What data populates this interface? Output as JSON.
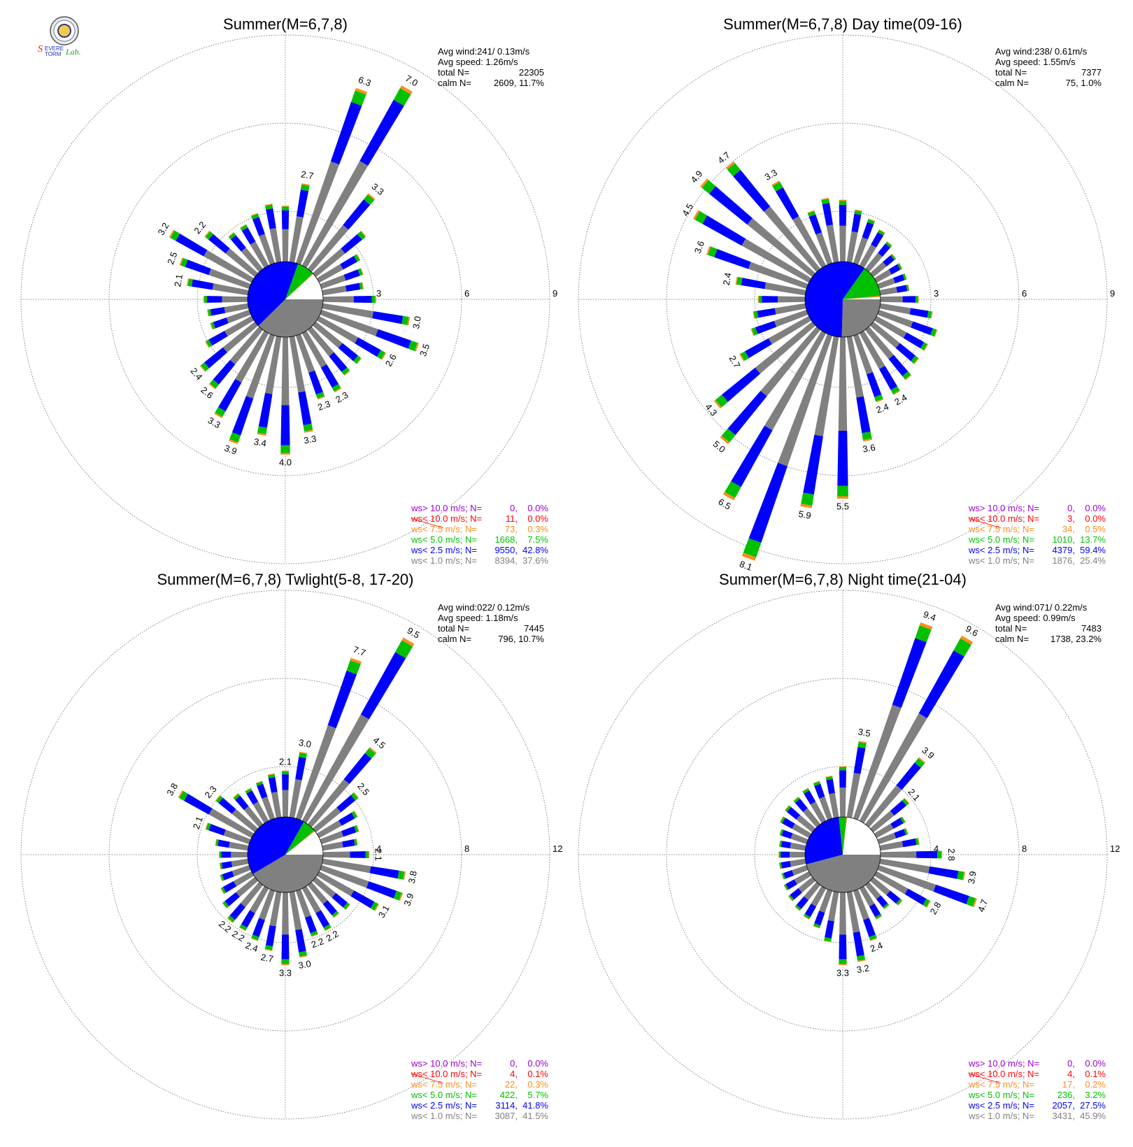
{
  "logo": {
    "text": "Severe Storm Lab."
  },
  "colors": {
    "gray": "#808080",
    "blue": "#0000ff",
    "green": "#00c000",
    "orange": "#ff8c1a",
    "red": "#ff0000",
    "purple": "#9b00d3",
    "grid": "#666666",
    "calm_white": "#ffffff"
  },
  "legend_labels": [
    "ws> 10.0 m/s; N=",
    "ws< 10.0 m/s; N=",
    "ws<  7.5 m/s; N=",
    "ws<  5.0 m/s; N=",
    "ws<  2.5 m/s; N=",
    "ws<  1.0 m/s; N="
  ],
  "stat_labels": {
    "avg_wind": "Avg wind:",
    "avg_speed": "Avg speed:",
    "total": "total N=",
    "calm": "calm N="
  },
  "chart_data": [
    {
      "type": "wind-rose",
      "title": "Summer(M=6,7,8)",
      "ring_labels": [
        "3",
        "6",
        "9"
      ],
      "max_ring": 9,
      "stats": {
        "avg_wind": "241/ 0.13m/s",
        "avg_speed": "1.26m/s",
        "total": "22305",
        "calm": "2609,  11.7%"
      },
      "legend": [
        {
          "n": "0",
          "pct": "0.0%"
        },
        {
          "n": "11",
          "pct": "0.0%"
        },
        {
          "n": "73",
          "pct": "0.3%"
        },
        {
          "n": "1668",
          "pct": "7.5%"
        },
        {
          "n": "9550",
          "pct": "42.8%"
        },
        {
          "n": "8394",
          "pct": "37.6%"
        }
      ],
      "center_pie": [
        37.6,
        42.8,
        7.5,
        0.3,
        0.0,
        0.0,
        11.7
      ],
      "sectors": [
        {
          "dir": 0,
          "total": 1.9
        },
        {
          "dir": 10,
          "total": 2.7,
          "label": "2.7"
        },
        {
          "dir": 20,
          "total": 6.3,
          "label": "6.3"
        },
        {
          "dir": 30,
          "total": 7.0,
          "label": "7.0"
        },
        {
          "dir": 40,
          "total": 3.3,
          "label": "3.3"
        },
        {
          "dir": 50,
          "total": 2.2
        },
        {
          "dir": 60,
          "total": 1.6
        },
        {
          "dir": 70,
          "total": 1.5
        },
        {
          "dir": 80,
          "total": 1.4
        },
        {
          "dir": 90,
          "total": 1.8
        },
        {
          "dir": 100,
          "total": 3.0,
          "label": "3.0"
        },
        {
          "dir": 110,
          "total": 3.5,
          "label": "3.5"
        },
        {
          "dir": 120,
          "total": 2.6,
          "label": "2.6"
        },
        {
          "dir": 130,
          "total": 2.0
        },
        {
          "dir": 140,
          "total": 2.0
        },
        {
          "dir": 150,
          "total": 2.3,
          "label": "2.3"
        },
        {
          "dir": 160,
          "total": 2.3,
          "label": "2.3"
        },
        {
          "dir": 170,
          "total": 3.3,
          "label": "3.3"
        },
        {
          "dir": 180,
          "total": 4.0,
          "label": "4.0"
        },
        {
          "dir": 190,
          "total": 3.4,
          "label": "3.4"
        },
        {
          "dir": 200,
          "total": 3.9,
          "label": "3.9"
        },
        {
          "dir": 210,
          "total": 3.3,
          "label": "3.3"
        },
        {
          "dir": 220,
          "total": 2.6,
          "label": "2.6"
        },
        {
          "dir": 230,
          "total": 2.4,
          "label": "2.4"
        },
        {
          "dir": 240,
          "total": 1.8
        },
        {
          "dir": 250,
          "total": 1.4
        },
        {
          "dir": 260,
          "total": 1.4
        },
        {
          "dir": 270,
          "total": 1.5
        },
        {
          "dir": 280,
          "total": 2.1,
          "label": "2.1"
        },
        {
          "dir": 290,
          "total": 2.5,
          "label": "2.5"
        },
        {
          "dir": 300,
          "total": 3.2,
          "label": "3.2"
        },
        {
          "dir": 310,
          "total": 2.2,
          "label": "2.2"
        },
        {
          "dir": 320,
          "total": 1.6
        },
        {
          "dir": 330,
          "total": 1.6
        },
        {
          "dir": 340,
          "total": 1.8
        },
        {
          "dir": 350,
          "total": 2.0
        }
      ]
    },
    {
      "type": "wind-rose",
      "title": "Summer(M=6,7,8) Day time(09-16)",
      "ring_labels": [
        "3",
        "6",
        "9"
      ],
      "max_ring": 9,
      "stats": {
        "avg_wind": "238/ 0.61m/s",
        "avg_speed": "1.55m/s",
        "total": "7377",
        "calm": "75,   1.0%"
      },
      "legend": [
        {
          "n": "0",
          "pct": "0.0%"
        },
        {
          "n": "3",
          "pct": "0.0%"
        },
        {
          "n": "34",
          "pct": "0.5%"
        },
        {
          "n": "1010",
          "pct": "13.7%"
        },
        {
          "n": "4379",
          "pct": "59.4%"
        },
        {
          "n": "1876",
          "pct": "25.4%"
        }
      ],
      "center_pie": [
        25.4,
        59.4,
        13.7,
        0.5,
        0.0,
        0.0,
        1.0
      ],
      "sectors": [
        {
          "dir": 0,
          "total": 2.1
        },
        {
          "dir": 10,
          "total": 1.8
        },
        {
          "dir": 20,
          "total": 1.6
        },
        {
          "dir": 30,
          "total": 1.4
        },
        {
          "dir": 40,
          "total": 1.2
        },
        {
          "dir": 50,
          "total": 1.0
        },
        {
          "dir": 60,
          "total": 1.0
        },
        {
          "dir": 70,
          "total": 1.0
        },
        {
          "dir": 80,
          "total": 1.0
        },
        {
          "dir": 90,
          "total": 1.3
        },
        {
          "dir": 100,
          "total": 1.8
        },
        {
          "dir": 110,
          "total": 2.1
        },
        {
          "dir": 120,
          "total": 2.0
        },
        {
          "dir": 130,
          "total": 2.0
        },
        {
          "dir": 140,
          "total": 2.2
        },
        {
          "dir": 150,
          "total": 2.4,
          "label": "2.4"
        },
        {
          "dir": 160,
          "total": 2.4,
          "label": "2.4"
        },
        {
          "dir": 170,
          "total": 3.6,
          "label": "3.6"
        },
        {
          "dir": 180,
          "total": 5.5,
          "label": "5.5"
        },
        {
          "dir": 190,
          "total": 5.9,
          "label": "5.9"
        },
        {
          "dir": 200,
          "total": 8.1,
          "label": "8.1"
        },
        {
          "dir": 210,
          "total": 6.5,
          "label": "6.5"
        },
        {
          "dir": 220,
          "total": 5.0,
          "label": "5.0"
        },
        {
          "dir": 230,
          "total": 4.3,
          "label": "4.3"
        },
        {
          "dir": 240,
          "total": 2.7,
          "label": "2.7"
        },
        {
          "dir": 250,
          "total": 2.0
        },
        {
          "dir": 260,
          "total": 1.8
        },
        {
          "dir": 270,
          "total": 1.6
        },
        {
          "dir": 280,
          "total": 2.4,
          "label": "2.4"
        },
        {
          "dir": 290,
          "total": 3.6,
          "label": "3.6"
        },
        {
          "dir": 300,
          "total": 4.5,
          "label": "4.5"
        },
        {
          "dir": 310,
          "total": 4.9,
          "label": "4.9"
        },
        {
          "dir": 320,
          "total": 4.7,
          "label": "4.7"
        },
        {
          "dir": 330,
          "total": 3.3,
          "label": "3.3"
        },
        {
          "dir": 340,
          "total": 1.9
        },
        {
          "dir": 350,
          "total": 2.2
        }
      ]
    },
    {
      "type": "wind-rose",
      "title": "Summer(M=6,7,8) Twlight(5-8, 17-20)",
      "ring_labels": [
        "4",
        "8",
        "12"
      ],
      "max_ring": 12,
      "stats": {
        "avg_wind": "022/ 0.12m/s",
        "avg_speed": "1.18m/s",
        "total": "7445",
        "calm": "796,  10.7%"
      },
      "legend": [
        {
          "n": "0",
          "pct": "0.0%"
        },
        {
          "n": "4",
          "pct": "0.1%"
        },
        {
          "n": "22",
          "pct": "0.3%"
        },
        {
          "n": "422",
          "pct": "5.7%"
        },
        {
          "n": "3114",
          "pct": "41.8%"
        },
        {
          "n": "3087",
          "pct": "41.5%"
        }
      ],
      "center_pie": [
        41.5,
        41.8,
        5.7,
        0.3,
        0.1,
        0.0,
        10.7
      ],
      "sectors": [
        {
          "dir": 0,
          "total": 2.1,
          "label": "2.1"
        },
        {
          "dir": 10,
          "total": 3.0,
          "label": "3.0"
        },
        {
          "dir": 20,
          "total": 7.7,
          "label": "7.7"
        },
        {
          "dir": 30,
          "total": 9.5,
          "label": "9.5"
        },
        {
          "dir": 40,
          "total": 4.5,
          "label": "4.5"
        },
        {
          "dir": 50,
          "total": 2.5,
          "label": "2.5"
        },
        {
          "dir": 60,
          "total": 2.0
        },
        {
          "dir": 70,
          "total": 1.8
        },
        {
          "dir": 80,
          "total": 1.6
        },
        {
          "dir": 90,
          "total": 2.1,
          "label": "2.1"
        },
        {
          "dir": 100,
          "total": 3.8,
          "label": "3.8"
        },
        {
          "dir": 110,
          "total": 3.9,
          "label": "3.9"
        },
        {
          "dir": 120,
          "total": 3.1,
          "label": "3.1"
        },
        {
          "dir": 130,
          "total": 2.0
        },
        {
          "dir": 140,
          "total": 1.9
        },
        {
          "dir": 150,
          "total": 2.2,
          "label": "2.2"
        },
        {
          "dir": 160,
          "total": 2.2,
          "label": "2.2"
        },
        {
          "dir": 170,
          "total": 3.0,
          "label": "3.0"
        },
        {
          "dir": 180,
          "total": 3.3,
          "label": "3.3"
        },
        {
          "dir": 190,
          "total": 2.7,
          "label": "2.7"
        },
        {
          "dir": 200,
          "total": 2.4,
          "label": "2.4"
        },
        {
          "dir": 210,
          "total": 2.2,
          "label": "2.2"
        },
        {
          "dir": 220,
          "total": 2.2,
          "label": "2.2"
        },
        {
          "dir": 230,
          "total": 1.9
        },
        {
          "dir": 240,
          "total": 1.6
        },
        {
          "dir": 250,
          "total": 1.4
        },
        {
          "dir": 260,
          "total": 1.3
        },
        {
          "dir": 270,
          "total": 1.3
        },
        {
          "dir": 280,
          "total": 1.5
        },
        {
          "dir": 290,
          "total": 2.1,
          "label": "2.1"
        },
        {
          "dir": 300,
          "total": 3.8,
          "label": "3.8"
        },
        {
          "dir": 310,
          "total": 2.3,
          "label": "2.3"
        },
        {
          "dir": 320,
          "total": 1.8
        },
        {
          "dir": 330,
          "total": 1.7
        },
        {
          "dir": 340,
          "total": 1.8
        },
        {
          "dir": 350,
          "total": 2.0
        }
      ]
    },
    {
      "type": "wind-rose",
      "title": "Summer(M=6,7,8) Night time(21-04)",
      "ring_labels": [
        "4",
        "8",
        "12"
      ],
      "max_ring": 12,
      "stats": {
        "avg_wind": "071/ 0.22m/s",
        "avg_speed": "0.99m/s",
        "total": "7483",
        "calm": "1738,  23.2%"
      },
      "legend": [
        {
          "n": "0",
          "pct": "0.0%"
        },
        {
          "n": "4",
          "pct": "0.1%"
        },
        {
          "n": "17",
          "pct": "0.2%"
        },
        {
          "n": "236",
          "pct": "3.2%"
        },
        {
          "n": "2057",
          "pct": "27.5%"
        },
        {
          "n": "3431",
          "pct": "45.9%"
        }
      ],
      "center_pie": [
        45.9,
        27.5,
        3.2,
        0.2,
        0.1,
        0.0,
        23.2
      ],
      "sectors": [
        {
          "dir": 0,
          "total": 2.3
        },
        {
          "dir": 10,
          "total": 3.5,
          "label": "3.5"
        },
        {
          "dir": 20,
          "total": 9.4,
          "label": "9.4"
        },
        {
          "dir": 30,
          "total": 9.6,
          "label": "9.6"
        },
        {
          "dir": 40,
          "total": 3.9,
          "label": "3.9"
        },
        {
          "dir": 50,
          "total": 2.1,
          "label": "2.1"
        },
        {
          "dir": 60,
          "total": 1.5
        },
        {
          "dir": 70,
          "total": 1.4
        },
        {
          "dir": 80,
          "total": 1.8
        },
        {
          "dir": 90,
          "total": 2.8,
          "label": "2.8"
        },
        {
          "dir": 100,
          "total": 3.9,
          "label": "3.9"
        },
        {
          "dir": 110,
          "total": 4.7,
          "label": "4.7"
        },
        {
          "dir": 120,
          "total": 2.8,
          "label": "2.8"
        },
        {
          "dir": 130,
          "total": 1.7
        },
        {
          "dir": 140,
          "total": 1.4
        },
        {
          "dir": 150,
          "total": 1.6
        },
        {
          "dir": 160,
          "total": 2.4,
          "label": "2.4"
        },
        {
          "dir": 170,
          "total": 3.2,
          "label": "3.2"
        },
        {
          "dir": 180,
          "total": 3.3,
          "label": "3.3"
        },
        {
          "dir": 190,
          "total": 2.3
        },
        {
          "dir": 200,
          "total": 1.8
        },
        {
          "dir": 210,
          "total": 1.6
        },
        {
          "dir": 220,
          "total": 1.5
        },
        {
          "dir": 230,
          "total": 1.4
        },
        {
          "dir": 240,
          "total": 1.3
        },
        {
          "dir": 250,
          "total": 1.2
        },
        {
          "dir": 260,
          "total": 1.2
        },
        {
          "dir": 270,
          "total": 1.2
        },
        {
          "dir": 280,
          "total": 1.2
        },
        {
          "dir": 290,
          "total": 1.3
        },
        {
          "dir": 300,
          "total": 1.5
        },
        {
          "dir": 310,
          "total": 1.6
        },
        {
          "dir": 320,
          "total": 1.6
        },
        {
          "dir": 330,
          "total": 1.7
        },
        {
          "dir": 340,
          "total": 1.8
        },
        {
          "dir": 350,
          "total": 1.9
        }
      ]
    }
  ]
}
